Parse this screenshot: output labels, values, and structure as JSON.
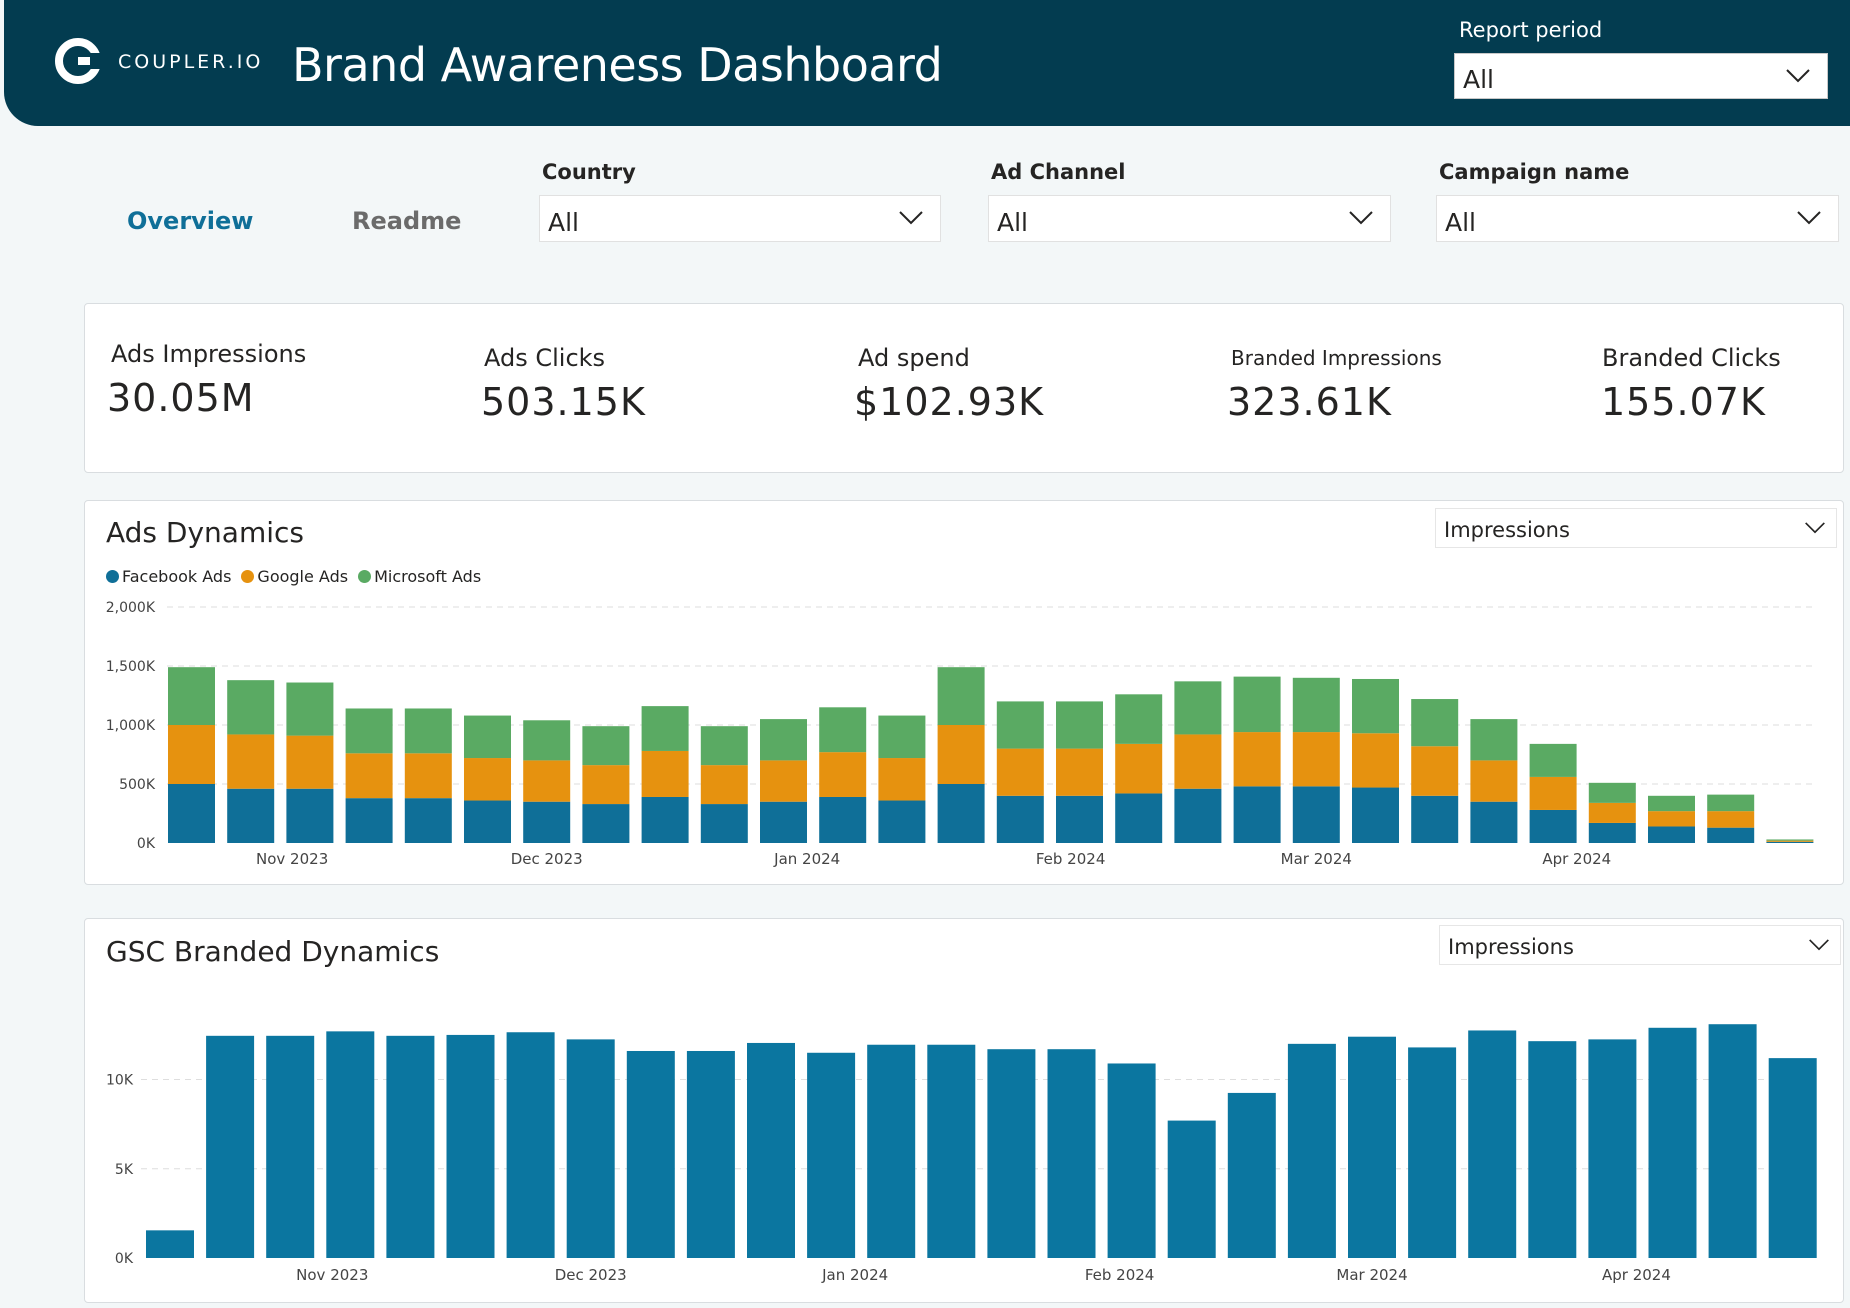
{
  "header": {
    "logo_text": "COUPLER.IO",
    "title": "Brand Awareness Dashboard",
    "report_period": {
      "label": "Report period",
      "value": "All"
    }
  },
  "nav": {
    "tabs": [
      "Overview",
      "Readme"
    ],
    "active": "Overview"
  },
  "filters": [
    {
      "label": "Country",
      "value": "All"
    },
    {
      "label": "Ad Channel",
      "value": "All"
    },
    {
      "label": "Campaign name",
      "value": "All"
    }
  ],
  "kpis": [
    {
      "label": "Ads Impressions",
      "value": "30.05M"
    },
    {
      "label": "Ads Clicks",
      "value": "503.15K"
    },
    {
      "label": "Ad spend",
      "value": "$102.93K"
    },
    {
      "label": "Branded Impressions",
      "value": "323.61K"
    },
    {
      "label": "Branded Clicks",
      "value": "155.07K"
    }
  ],
  "colors": {
    "header_bg": "#033c50",
    "facebook": "#0f6f98",
    "google": "#e6920f",
    "microsoft": "#5aaa63",
    "gsc_bar": "#0b76a0",
    "accent": "#0f6f98"
  },
  "ads_dynamics": {
    "title": "Ads Dynamics",
    "metric": "Impressions"
  },
  "gsc_dynamics": {
    "title": "GSC Branded Dynamics",
    "metric": "Impressions"
  },
  "chart_data": [
    {
      "type": "bar",
      "stacked": true,
      "title": "Ads Dynamics",
      "xlabel": "",
      "ylabel": "",
      "ylim": [
        0,
        2000
      ],
      "y_ticks": [
        0,
        500,
        1000,
        1500,
        2000
      ],
      "y_tick_labels": [
        "0K",
        "500K",
        "1,000K",
        "1,500K",
        "2,000K"
      ],
      "x_tick_labels": [
        "Nov 2023",
        "Dec 2023",
        "Jan 2024",
        "Feb 2024",
        "Mar 2024",
        "Apr 2024"
      ],
      "x_tick_positions": [
        1.7,
        6,
        10.4,
        14.85,
        19,
        23.4
      ],
      "legend": "top-left",
      "series": [
        {
          "name": "Facebook Ads",
          "color": "#0f6f98",
          "values": [
            500,
            460,
            460,
            380,
            380,
            360,
            350,
            330,
            390,
            330,
            350,
            390,
            360,
            500,
            400,
            400,
            420,
            460,
            480,
            480,
            470,
            400,
            350,
            280,
            170,
            140,
            130,
            10
          ]
        },
        {
          "name": "Google Ads",
          "color": "#e6920f",
          "values": [
            500,
            460,
            450,
            380,
            380,
            360,
            350,
            330,
            390,
            330,
            350,
            380,
            360,
            500,
            400,
            400,
            420,
            460,
            460,
            460,
            460,
            420,
            350,
            280,
            170,
            130,
            140,
            10
          ]
        },
        {
          "name": "Microsoft Ads",
          "color": "#5aaa63",
          "values": [
            490,
            460,
            450,
            380,
            380,
            360,
            340,
            330,
            380,
            330,
            350,
            380,
            360,
            490,
            400,
            400,
            420,
            450,
            470,
            460,
            460,
            400,
            350,
            280,
            170,
            130,
            140,
            10
          ]
        }
      ]
    },
    {
      "type": "bar",
      "title": "GSC Branded Dynamics",
      "xlabel": "",
      "ylabel": "",
      "ylim": [
        0,
        13000
      ],
      "y_ticks": [
        0,
        5000,
        10000
      ],
      "y_tick_labels": [
        "0K",
        "5K",
        "10K"
      ],
      "x_tick_labels": [
        "Nov 2023",
        "Dec 2023",
        "Jan 2024",
        "Feb 2024",
        "Mar 2024",
        "Apr 2024"
      ],
      "x_tick_positions": [
        2.7,
        7,
        11.4,
        15.8,
        20,
        24.4
      ],
      "legend": "none",
      "series": [
        {
          "name": "Impressions",
          "color": "#0b76a0",
          "values": [
            1550,
            12450,
            12450,
            12700,
            12450,
            12500,
            12650,
            12250,
            11600,
            11600,
            12050,
            11500,
            11950,
            11950,
            11700,
            11700,
            10900,
            7700,
            9250,
            12000,
            12400,
            11800,
            12750,
            12150,
            12250,
            12900,
            13100,
            11200
          ]
        }
      ]
    }
  ]
}
